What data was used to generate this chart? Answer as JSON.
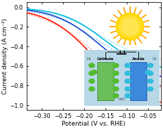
{
  "xlim": [
    -0.335,
    -0.02
  ],
  "ylim": [
    -1.05,
    0.05
  ],
  "xticks": [
    -0.3,
    -0.25,
    -0.2,
    -0.15,
    -0.1,
    -0.05
  ],
  "yticks": [
    0.0,
    -0.2,
    -0.4,
    -0.6,
    -0.8,
    -1.0
  ],
  "xlabel": "Potential (V vs. RHE)",
  "ylabel": "Current density (A cm⁻²)",
  "line_solid_colors": [
    "#FF1100",
    "#1144CC",
    "#00BBDD"
  ],
  "line_dot_colors": [
    "#FF7766",
    "#66AAFF",
    "#66DDEE"
  ],
  "background": "#ffffff",
  "tick_fontsize": 6.0,
  "label_fontsize": 6.5
}
